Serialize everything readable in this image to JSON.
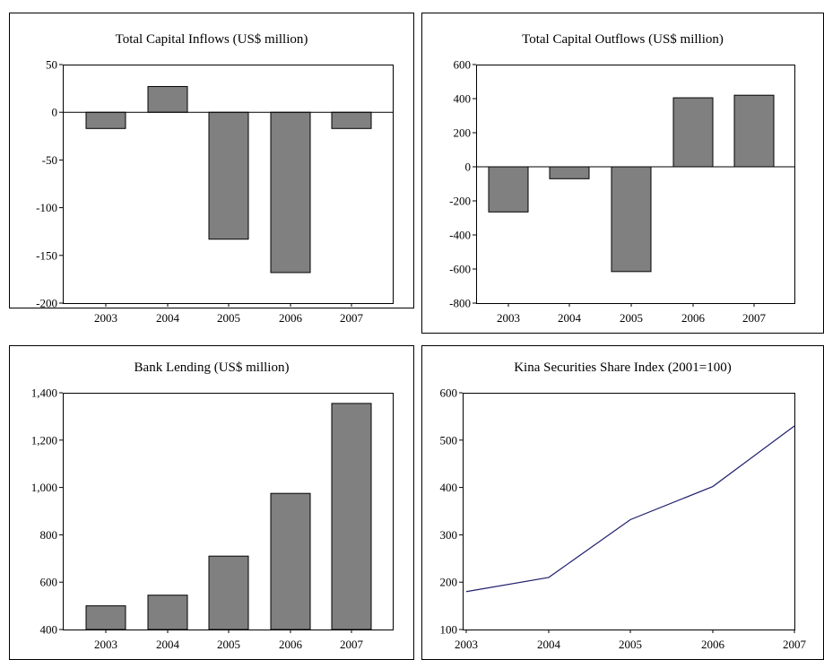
{
  "colors": {
    "bar_fill": "#808080",
    "line_color": "#1f1f6e",
    "axis": "#000000"
  },
  "chart_data": [
    {
      "type": "bar",
      "title": "Total Capital Inflows (US$ million)",
      "categories": [
        "2003",
        "2004",
        "2005",
        "2006",
        "2007"
      ],
      "values": [
        -17,
        27,
        -133,
        -168,
        -17
      ],
      "ylim": [
        -200,
        50
      ],
      "yticks": [
        50,
        0,
        -50,
        -100,
        -150,
        -200
      ],
      "ytick_labels": [
        "50",
        "0",
        "-50",
        "-100",
        "-150",
        "-200"
      ],
      "zero_line": true,
      "grid": false
    },
    {
      "type": "bar",
      "title": "Total Capital Outflows (US$ million)",
      "categories": [
        "2003",
        "2004",
        "2005",
        "2006",
        "2007"
      ],
      "values": [
        -265,
        -70,
        -615,
        405,
        420
      ],
      "ylim": [
        -800,
        600
      ],
      "yticks": [
        600,
        400,
        200,
        0,
        -200,
        -400,
        -600,
        -800
      ],
      "ytick_labels": [
        "600",
        "400",
        "200",
        "0",
        "-200",
        "-400",
        "-600",
        "-800"
      ],
      "zero_line": true,
      "grid": false
    },
    {
      "type": "bar",
      "title": "Bank Lending (US$ million)",
      "categories": [
        "2003",
        "2004",
        "2005",
        "2006",
        "2007"
      ],
      "values": [
        500,
        545,
        710,
        975,
        1355
      ],
      "ylim": [
        400,
        1400
      ],
      "yticks": [
        1400,
        1200,
        1000,
        800,
        600,
        400
      ],
      "ytick_labels": [
        "1,400",
        "1,200",
        "1,000",
        "800",
        "600",
        "400"
      ],
      "zero_line": false,
      "grid": false
    },
    {
      "type": "line",
      "title": "Kina Securities Share Index (2001=100)",
      "x": [
        "2003",
        "2004",
        "2005",
        "2006",
        "2007"
      ],
      "values": [
        180,
        210,
        332,
        402,
        530
      ],
      "ylim": [
        100,
        600
      ],
      "yticks": [
        600,
        500,
        400,
        300,
        200,
        100
      ],
      "ytick_labels": [
        "600",
        "500",
        "400",
        "300",
        "200",
        "100"
      ],
      "grid": false
    }
  ]
}
